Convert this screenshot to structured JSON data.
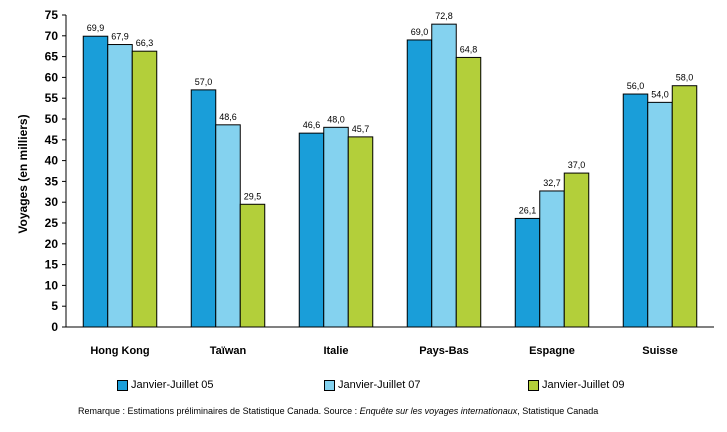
{
  "chart_data": {
    "type": "bar",
    "categories": [
      "Hong Kong",
      "Taïwan",
      "Italie",
      "Pays-Bas",
      "Espagne",
      "Suisse"
    ],
    "series": [
      {
        "name": "Janvier-Juillet 05",
        "color": "#1a9ed9",
        "values": [
          69.9,
          57.0,
          46.6,
          69.0,
          26.1,
          56.0
        ],
        "labels": [
          "69,9",
          "57,0",
          "46,6",
          "69,0",
          "26,1",
          "56,0"
        ]
      },
      {
        "name": "Janvier-Juillet 07",
        "color": "#84d2ef",
        "values": [
          67.9,
          48.6,
          48.0,
          72.8,
          32.7,
          54.0
        ],
        "labels": [
          "67,9",
          "48,6",
          "48,0",
          "72,8",
          "32,7",
          "54,0"
        ]
      },
      {
        "name": "Janvier-Juillet 09",
        "color": "#b3cf3a",
        "values": [
          66.3,
          29.5,
          45.7,
          64.8,
          37.0,
          58.0
        ],
        "labels": [
          "66,3",
          "29,5",
          "45,7",
          "64,8",
          "37,0",
          "58,0"
        ]
      }
    ],
    "ylabel": "Voyages (en milliers)",
    "ylim": [
      0,
      75
    ],
    "yticks": [
      0,
      5,
      10,
      15,
      20,
      25,
      30,
      35,
      40,
      45,
      50,
      55,
      60,
      65,
      70,
      75
    ],
    "grid": false,
    "legend": "bottom"
  },
  "note": {
    "prefix": "Remarque : Estimations préliminaires de Statistique Canada.  Source : ",
    "source_title": "Enquête sur les voyages internationaux",
    "suffix": ", Statistique Canada"
  }
}
